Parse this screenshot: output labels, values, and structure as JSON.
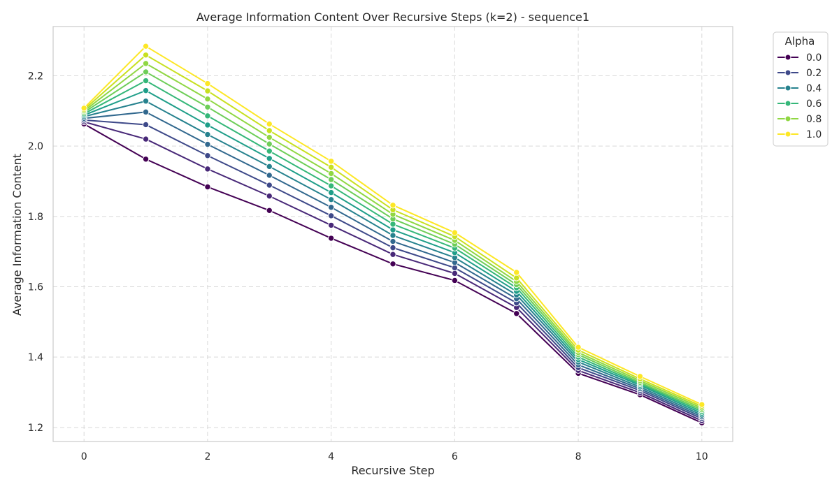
{
  "chart_data": {
    "type": "line",
    "title": "Average Information Content Over Recursive Steps (k=2) - sequence1",
    "xlabel": "Recursive Step",
    "ylabel": "Average Information Content",
    "x": [
      0,
      1,
      2,
      3,
      4,
      5,
      6,
      7,
      8,
      9,
      10
    ],
    "xlim": [
      -0.5,
      10.5
    ],
    "ylim": [
      1.16,
      2.34
    ],
    "xticks": [
      "0",
      "2",
      "4",
      "6",
      "8",
      "10"
    ],
    "yticks": [
      "1.2",
      "1.4",
      "1.6",
      "1.8",
      "2.0",
      "2.2"
    ],
    "grid": true,
    "legend": {
      "title": "Alpha",
      "placement": "outside-top-right"
    },
    "series": [
      {
        "name": "0.0",
        "color": "#440154",
        "values": [
          2.063,
          1.963,
          1.884,
          1.817,
          1.738,
          1.665,
          1.618,
          1.524,
          1.354,
          1.293,
          1.213
        ]
      },
      {
        "name": "",
        "color": "#482878",
        "values": [
          2.069,
          2.02,
          1.935,
          1.858,
          1.775,
          1.692,
          1.638,
          1.541,
          1.362,
          1.299,
          1.219
        ]
      },
      {
        "name": "0.2",
        "color": "#3e4989",
        "values": [
          2.074,
          2.061,
          1.973,
          1.889,
          1.802,
          1.711,
          1.654,
          1.554,
          1.37,
          1.305,
          1.225
        ]
      },
      {
        "name": "",
        "color": "#31688e",
        "values": [
          2.079,
          2.097,
          2.005,
          1.917,
          1.826,
          1.729,
          1.669,
          1.566,
          1.378,
          1.31,
          1.23
        ]
      },
      {
        "name": "0.4",
        "color": "#26828e",
        "values": [
          2.084,
          2.128,
          2.033,
          1.942,
          1.848,
          1.746,
          1.683,
          1.577,
          1.386,
          1.315,
          1.235
        ]
      },
      {
        "name": "",
        "color": "#1f9e89",
        "values": [
          2.088,
          2.158,
          2.06,
          1.965,
          1.868,
          1.762,
          1.697,
          1.587,
          1.393,
          1.32,
          1.24
        ]
      },
      {
        "name": "0.6",
        "color": "#35b779",
        "values": [
          2.092,
          2.186,
          2.086,
          1.986,
          1.887,
          1.778,
          1.71,
          1.597,
          1.4,
          1.324,
          1.245
        ]
      },
      {
        "name": "",
        "color": "#6ece58",
        "values": [
          2.096,
          2.211,
          2.111,
          2.006,
          1.905,
          1.793,
          1.721,
          1.606,
          1.407,
          1.328,
          1.25
        ]
      },
      {
        "name": "0.8",
        "color": "#90d743",
        "values": [
          2.1,
          2.235,
          2.134,
          2.025,
          1.922,
          1.806,
          1.732,
          1.615,
          1.413,
          1.333,
          1.255
        ]
      },
      {
        "name": "",
        "color": "#c8e020",
        "values": [
          2.104,
          2.259,
          2.157,
          2.044,
          1.94,
          1.819,
          1.743,
          1.625,
          1.42,
          1.338,
          1.26
        ]
      },
      {
        "name": "1.0",
        "color": "#fde725",
        "values": [
          2.108,
          2.284,
          2.178,
          2.063,
          1.957,
          1.832,
          1.754,
          1.641,
          1.428,
          1.345,
          1.265
        ]
      }
    ]
  }
}
